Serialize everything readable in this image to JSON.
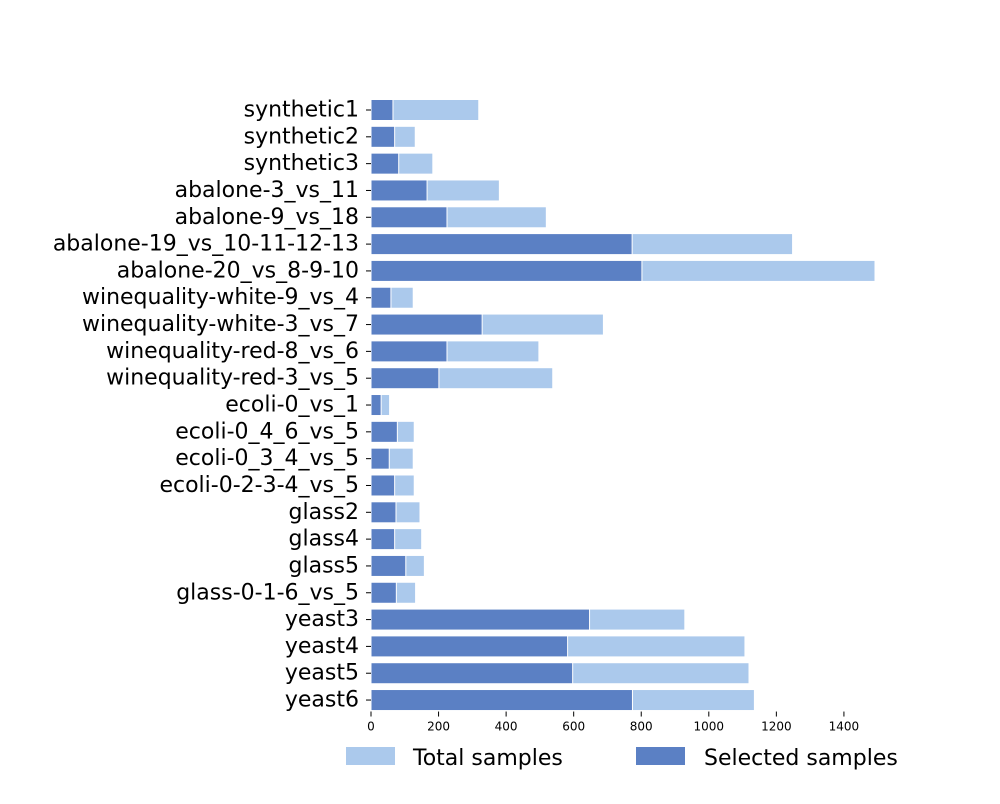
{
  "chart_data": {
    "type": "bar",
    "orientation": "horizontal",
    "categories": [
      "synthetic1",
      "synthetic2",
      "synthetic3",
      "abalone-3_vs_11",
      "abalone-9_vs_18",
      "abalone-19_vs_10-11-12-13",
      "abalone-20_vs_8-9-10",
      "winequality-white-9_vs_4",
      "winequality-white-3_vs_7",
      "winequality-red-8_vs_6",
      "winequality-red-3_vs_5",
      "ecoli-0_vs_1",
      "ecoli-0_4_6_vs_5",
      "ecoli-0_3_4_vs_5",
      "ecoli-0-2-3-4_vs_5",
      "glass2",
      "glass4",
      "glass5",
      "glass-0-1-6_vs_5",
      "yeast3",
      "yeast4",
      "yeast5",
      "yeast6"
    ],
    "series": [
      {
        "name": "Total samples",
        "color": "#abc9ec",
        "values": [
          319,
          131,
          183,
          380,
          519,
          1248,
          1492,
          125,
          688,
          497,
          538,
          55,
          128,
          125,
          128,
          145,
          150,
          158,
          132,
          929,
          1107,
          1119,
          1135
        ]
      },
      {
        "name": "Selected samples",
        "color": "#5b80c4",
        "values": [
          65,
          70,
          82,
          166,
          225,
          773,
          802,
          59,
          329,
          225,
          201,
          30,
          78,
          54,
          70,
          74,
          70,
          103,
          75,
          647,
          582,
          597,
          774
        ]
      }
    ],
    "xlim": [
      0,
      1500
    ],
    "xticks": [
      0,
      200,
      400,
      600,
      800,
      1000,
      1200,
      1400
    ],
    "title": "",
    "xlabel": "",
    "ylabel": "",
    "grid": false,
    "legend": "bottom-center"
  }
}
